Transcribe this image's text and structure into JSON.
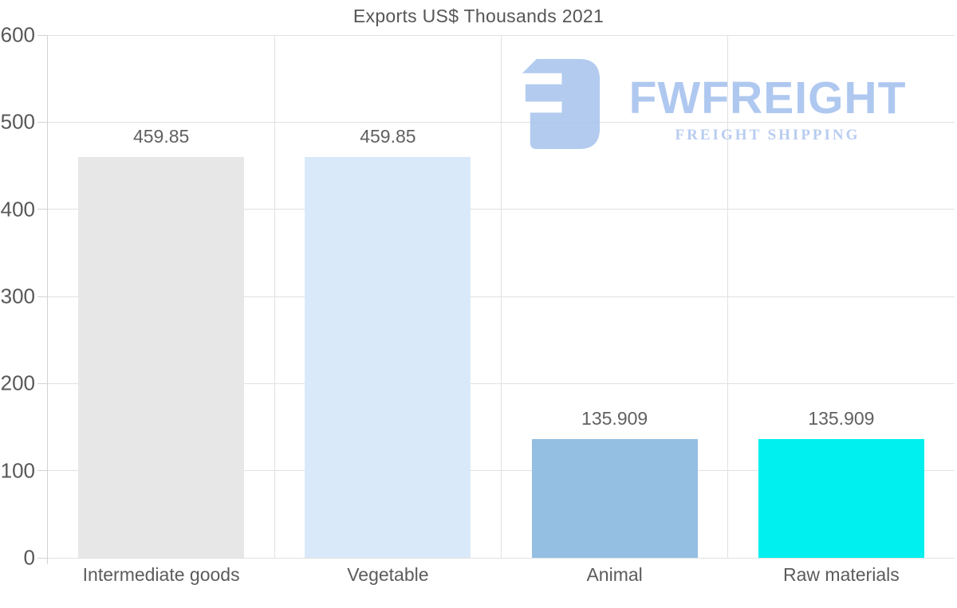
{
  "title": "Exports US$ Thousands 2021",
  "chart_data": {
    "type": "bar",
    "title": "Exports US$ Thousands 2021",
    "categories": [
      "Intermediate goods",
      "Vegetable",
      "Animal",
      "Raw materials"
    ],
    "values": [
      459.85,
      459.85,
      135.909,
      135.909
    ],
    "data_labels": [
      "459.85",
      "459.85",
      "135.909",
      "135.909"
    ],
    "bar_colors": [
      "#e7e7e7",
      "#d9e9f9",
      "#95bee3",
      "#00efef"
    ],
    "ylim": [
      0,
      600
    ],
    "yticks": [
      0,
      100,
      200,
      300,
      400,
      500,
      600
    ],
    "xlabel": "",
    "ylabel": "",
    "legend": "none",
    "grid": "horizontal lines at every 100; vertical separators at category boundaries"
  },
  "watermark": {
    "brand": "FWFREIGHT",
    "tagline": "FREIGHT SHIPPING",
    "brand_color": "#a5c1ee",
    "tagline_color": "#aec5ee",
    "mark_color": "#a9c4ed"
  },
  "colors": {
    "background": "#ffffff",
    "gridline": "#e1e1e1",
    "axis": "#d2d2d2",
    "label_text": "#5c5c5c",
    "title_text": "#565656"
  }
}
